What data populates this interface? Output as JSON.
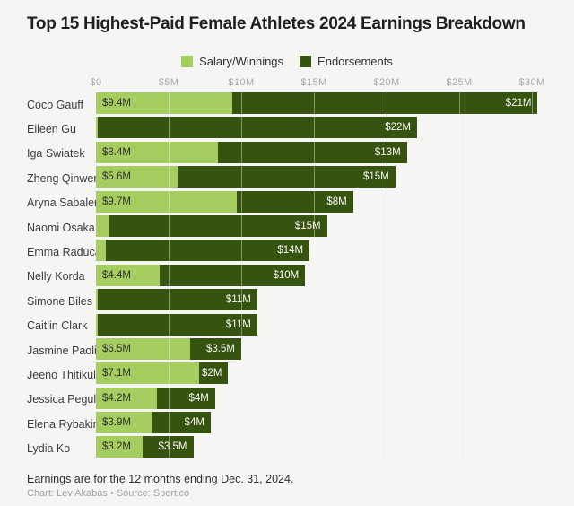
{
  "title": "Top 15 Highest-Paid Female Athletes 2024 Earnings Breakdown",
  "colors": {
    "salary": "#a6cd5f",
    "endorsements": "#375310",
    "background": "#f5f5f3"
  },
  "legend": [
    {
      "label": "Salary/Winnings"
    },
    {
      "label": "Endorsements"
    }
  ],
  "chart_data": {
    "type": "bar",
    "orientation": "horizontal",
    "stacked": true,
    "title": "Top 15 Highest-Paid Female Athletes 2024 Earnings Breakdown",
    "x_ticks": [
      "$0",
      "$5M",
      "$10M",
      "$15M",
      "$20M",
      "$25M",
      "$30M"
    ],
    "x_tick_values": [
      0,
      5,
      10,
      15,
      20,
      25,
      30
    ],
    "xlim": [
      0,
      30
    ],
    "grid": true,
    "legend_position": "top-center",
    "unit": "millions USD",
    "categories": [
      "Coco Gauff",
      "Eileen Gu",
      "Iga Swiatek",
      "Zheng Qinwen",
      "Aryna Sabalenka",
      "Naomi Osaka",
      "Emma Raducanu",
      "Nelly Korda",
      "Simone Biles",
      "Caitlin Clark",
      "Jasmine Paolini",
      "Jeeno Thitikul",
      "Jessica Pegula",
      "Elena Rybakina",
      "Lydia Ko"
    ],
    "series": [
      {
        "name": "Salary/Winnings",
        "values": [
          9.4,
          0.1,
          8.4,
          5.6,
          9.7,
          0.9,
          0.7,
          4.4,
          0.1,
          0.1,
          6.5,
          7.1,
          4.2,
          3.9,
          3.2
        ],
        "labels": [
          "$9.4M",
          "",
          "$8.4M",
          "$5.6M",
          "$9.7M",
          "",
          "",
          "$4.4M",
          "",
          "",
          "$6.5M",
          "$7.1M",
          "$4.2M",
          "$3.9M",
          "$3.2M"
        ]
      },
      {
        "name": "Endorsements",
        "values": [
          21,
          22,
          13,
          15,
          8,
          15,
          14,
          10,
          11,
          11,
          3.5,
          2,
          4,
          4,
          3.5
        ],
        "labels": [
          "$21M",
          "$22M",
          "$13M",
          "$15M",
          "$8M",
          "$15M",
          "$14M",
          "$10M",
          "$11M",
          "$11M",
          "$3.5M",
          "$2M",
          "$4M",
          "$4M",
          "$3.5M"
        ]
      }
    ]
  },
  "footnote": "Earnings are for the 12 months ending Dec. 31, 2024.",
  "credit": "Chart: Lev Akabas • Source: Sportico"
}
